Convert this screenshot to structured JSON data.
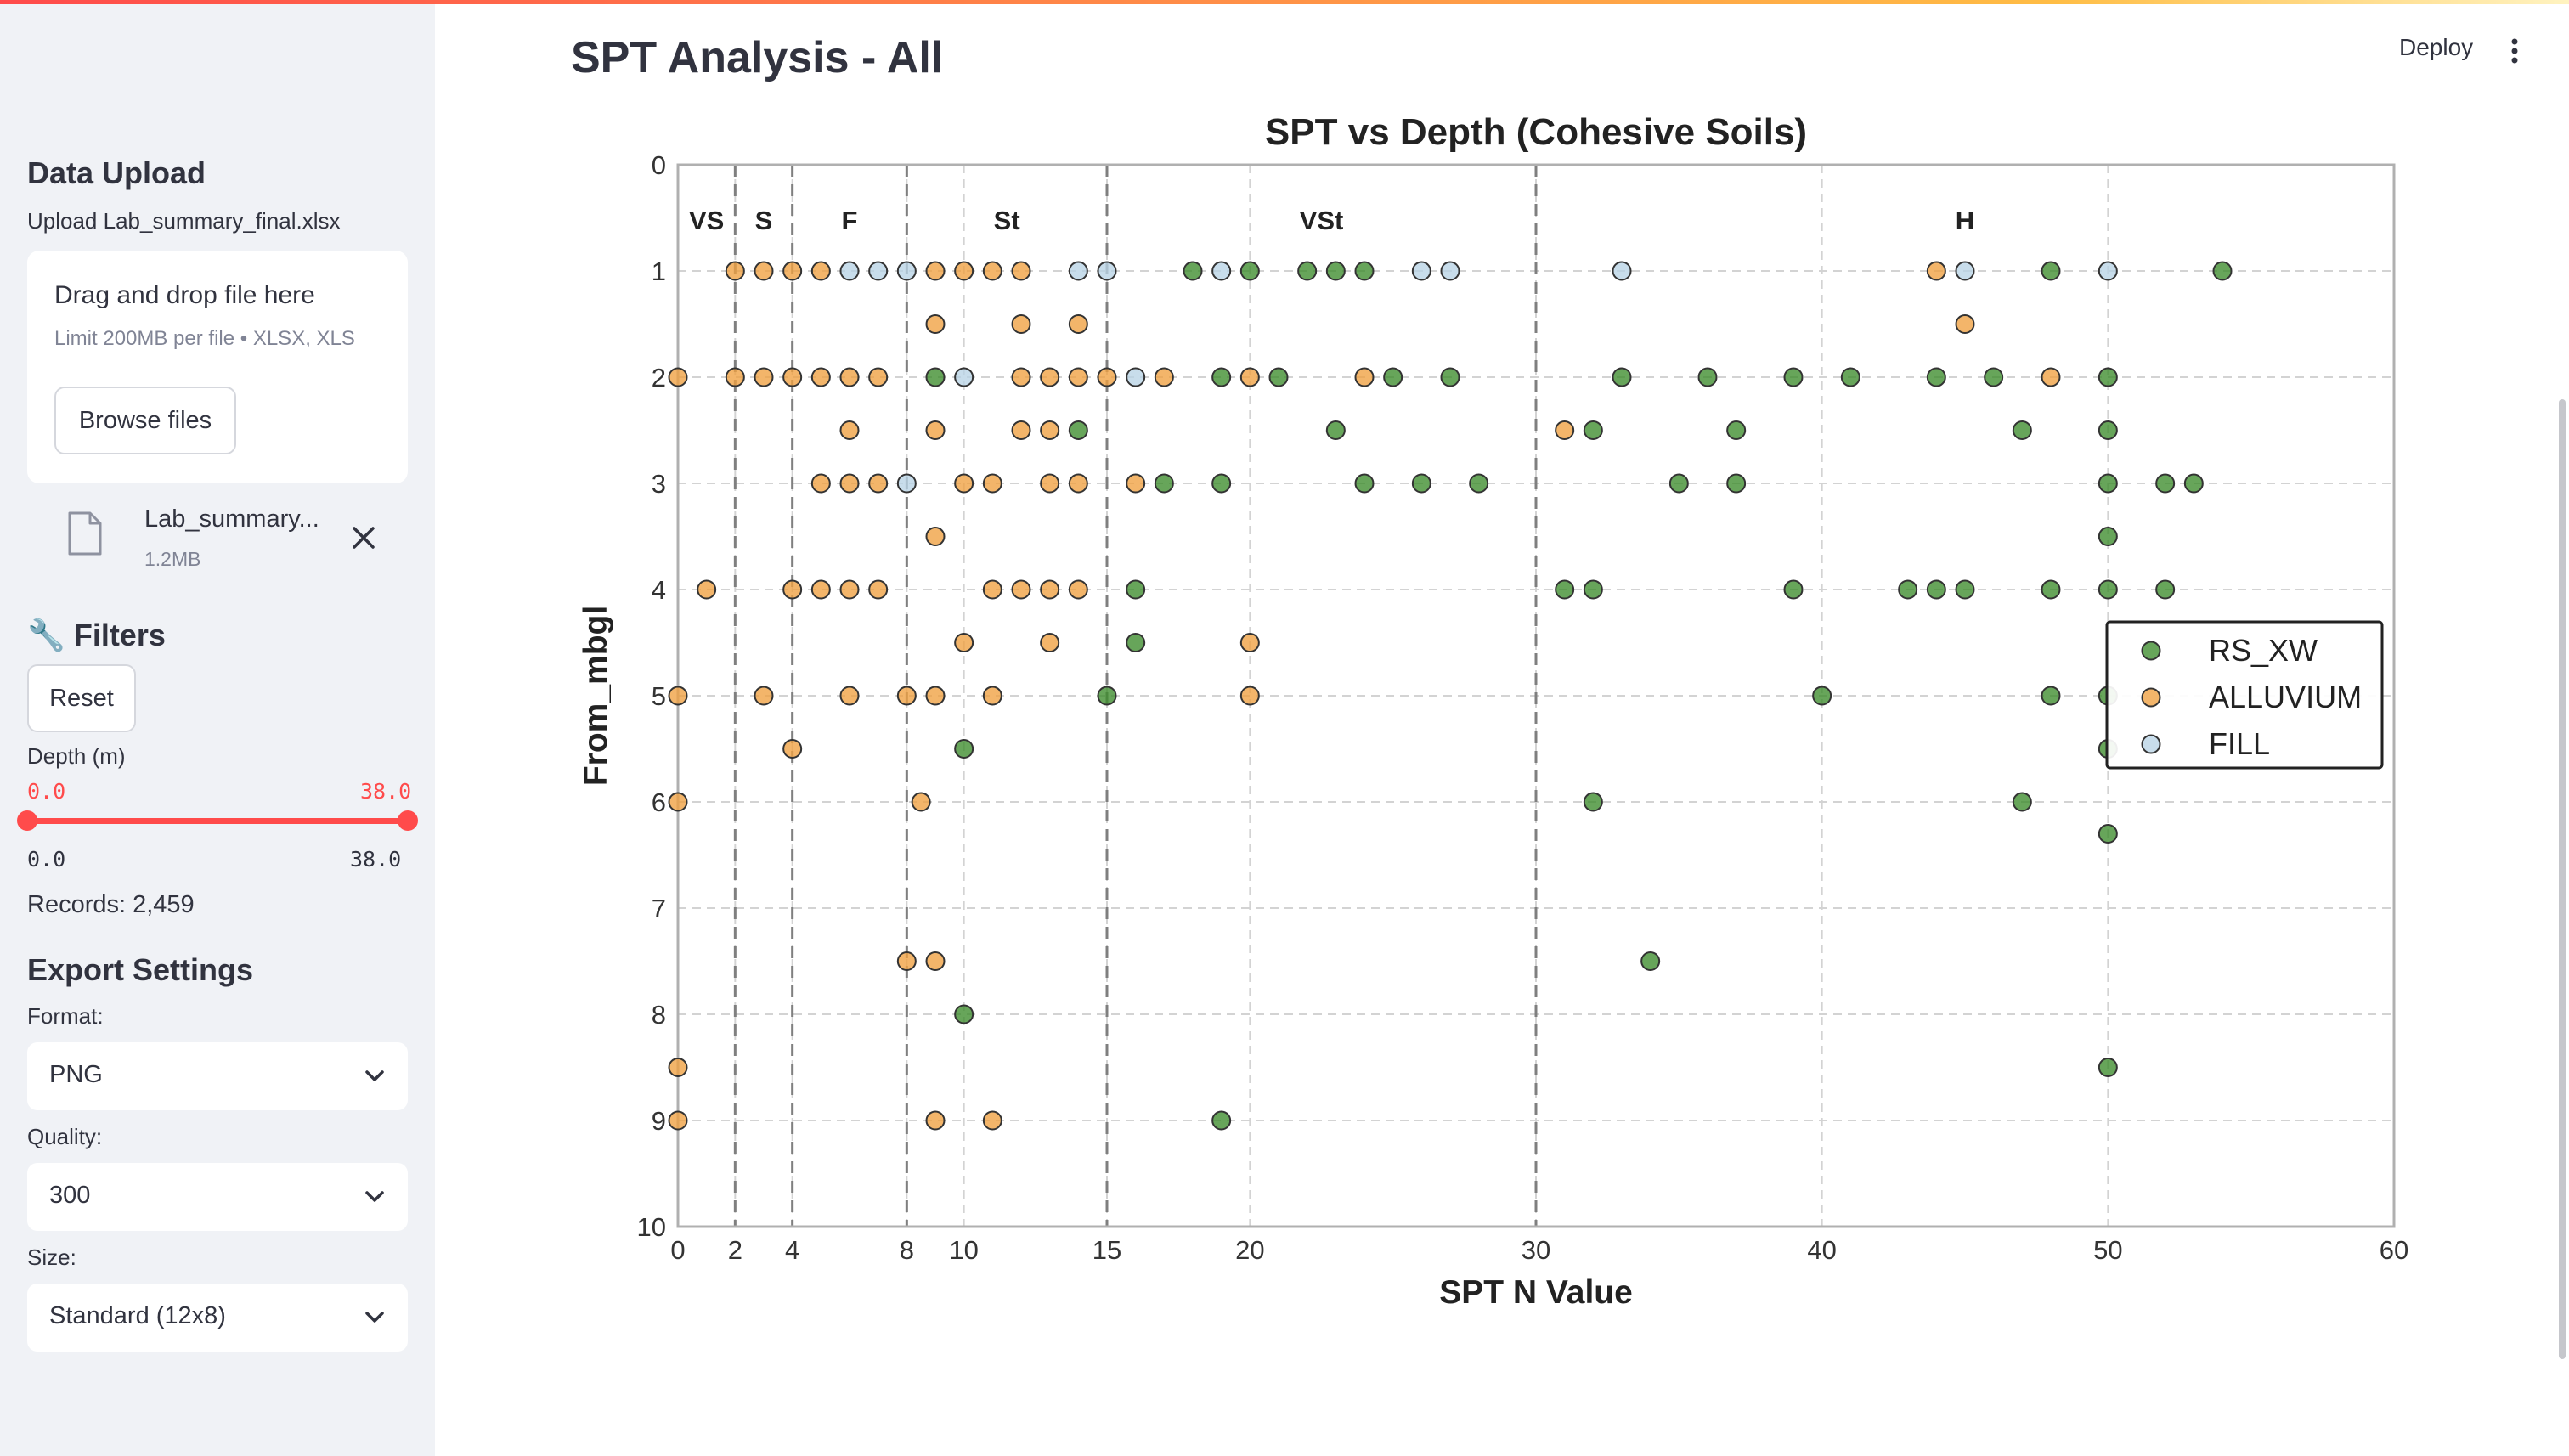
{
  "sidebar": {
    "upload_title": "Data Upload",
    "upload_label": "Upload Lab_summary_final.xlsx",
    "drop_text": "Drag and drop file here",
    "limit_text": "Limit 200MB per file • XLSX, XLS",
    "browse_label": "Browse files",
    "file_name": "Lab_summary...",
    "file_size": "1.2MB",
    "filters_title": "🔧 Filters",
    "reset_label": "Reset",
    "depth_label": "Depth (m)",
    "depth_min": "0.0",
    "depth_max": "38.0",
    "depth_range_min": "0.0",
    "depth_range_max": "38.0",
    "records": "Records: 2,459",
    "export_title": "Export Settings",
    "format_label": "Format:",
    "format_value": "PNG",
    "quality_label": "Quality:",
    "quality_value": "300",
    "size_label": "Size:",
    "size_value": "Standard (12x8)"
  },
  "header": {
    "page_title": "SPT Analysis - All",
    "deploy_label": "Deploy"
  },
  "colors": {
    "accent": "#ff4b4b",
    "rs_xw": "#3c8c2c",
    "alluvium": "#f0a040",
    "fill": "#b8d4e6"
  },
  "chart_data": {
    "type": "scatter",
    "title": "SPT vs Depth (Cohesive Soils)",
    "xlabel": "SPT N Value",
    "ylabel": "From_mbgl",
    "xlim": [
      0,
      60
    ],
    "ylim": [
      10,
      0
    ],
    "x_ticks": [
      0,
      2,
      4,
      8,
      10,
      15,
      20,
      30,
      40,
      50,
      60
    ],
    "y_ticks": [
      0,
      1,
      2,
      3,
      4,
      5,
      6,
      7,
      8,
      9,
      10
    ],
    "grid": true,
    "legend_position": "right",
    "consistency_boundaries": [
      2,
      4,
      8,
      15,
      30
    ],
    "consistency_zones": [
      {
        "label": "VS",
        "x": 1
      },
      {
        "label": "S",
        "x": 3
      },
      {
        "label": "F",
        "x": 6
      },
      {
        "label": "St",
        "x": 11.5
      },
      {
        "label": "VSt",
        "x": 22.5
      },
      {
        "label": "H",
        "x": 45
      }
    ],
    "series": [
      {
        "name": "RS_XW",
        "points": [
          [
            18,
            1
          ],
          [
            20,
            1
          ],
          [
            22,
            1
          ],
          [
            23,
            1
          ],
          [
            24,
            1
          ],
          [
            48,
            1
          ],
          [
            54,
            1
          ],
          [
            9,
            2
          ],
          [
            19,
            2
          ],
          [
            21,
            2
          ],
          [
            25,
            2
          ],
          [
            27,
            2
          ],
          [
            33,
            2
          ],
          [
            36,
            2
          ],
          [
            39,
            2
          ],
          [
            41,
            2
          ],
          [
            44,
            2
          ],
          [
            46,
            2
          ],
          [
            50,
            2
          ],
          [
            14,
            2.5
          ],
          [
            23,
            2.5
          ],
          [
            32,
            2.5
          ],
          [
            37,
            2.5
          ],
          [
            47,
            2.5
          ],
          [
            50,
            2.5
          ],
          [
            17,
            3
          ],
          [
            19,
            3
          ],
          [
            24,
            3
          ],
          [
            26,
            3
          ],
          [
            28,
            3
          ],
          [
            35,
            3
          ],
          [
            37,
            3
          ],
          [
            50,
            3
          ],
          [
            52,
            3
          ],
          [
            53,
            3
          ],
          [
            50,
            3.5
          ],
          [
            16,
            4
          ],
          [
            31,
            4
          ],
          [
            32,
            4
          ],
          [
            39,
            4
          ],
          [
            43,
            4
          ],
          [
            44,
            4
          ],
          [
            45,
            4
          ],
          [
            48,
            4
          ],
          [
            50,
            4
          ],
          [
            52,
            4
          ],
          [
            16,
            4.5
          ],
          [
            15,
            5
          ],
          [
            40,
            5
          ],
          [
            48,
            5
          ],
          [
            50,
            5
          ],
          [
            10,
            5.5
          ],
          [
            50,
            5.5
          ],
          [
            32,
            6
          ],
          [
            47,
            6
          ],
          [
            50,
            6.3
          ],
          [
            34,
            7.5
          ],
          [
            10,
            8
          ],
          [
            50,
            8.5
          ],
          [
            19,
            9
          ]
        ]
      },
      {
        "name": "ALLUVIUM",
        "points": [
          [
            2,
            1
          ],
          [
            3,
            1
          ],
          [
            4,
            1
          ],
          [
            5,
            1
          ],
          [
            9,
            1
          ],
          [
            10,
            1
          ],
          [
            11,
            1
          ],
          [
            12,
            1
          ],
          [
            44,
            1
          ],
          [
            9,
            1.5
          ],
          [
            12,
            1.5
          ],
          [
            14,
            1.5
          ],
          [
            45,
            1.5
          ],
          [
            0,
            2
          ],
          [
            2,
            2
          ],
          [
            3,
            2
          ],
          [
            4,
            2
          ],
          [
            5,
            2
          ],
          [
            6,
            2
          ],
          [
            7,
            2
          ],
          [
            12,
            2
          ],
          [
            13,
            2
          ],
          [
            14,
            2
          ],
          [
            15,
            2
          ],
          [
            17,
            2
          ],
          [
            20,
            2
          ],
          [
            24,
            2
          ],
          [
            48,
            2
          ],
          [
            6,
            2.5
          ],
          [
            9,
            2.5
          ],
          [
            12,
            2.5
          ],
          [
            13,
            2.5
          ],
          [
            31,
            2.5
          ],
          [
            5,
            3
          ],
          [
            6,
            3
          ],
          [
            7,
            3
          ],
          [
            10,
            3
          ],
          [
            11,
            3
          ],
          [
            13,
            3
          ],
          [
            14,
            3
          ],
          [
            16,
            3
          ],
          [
            9,
            3.5
          ],
          [
            1,
            4
          ],
          [
            4,
            4
          ],
          [
            5,
            4
          ],
          [
            6,
            4
          ],
          [
            7,
            4
          ],
          [
            11,
            4
          ],
          [
            12,
            4
          ],
          [
            13,
            4
          ],
          [
            14,
            4
          ],
          [
            10,
            4.5
          ],
          [
            13,
            4.5
          ],
          [
            20,
            4.5
          ],
          [
            0,
            5
          ],
          [
            3,
            5
          ],
          [
            6,
            5
          ],
          [
            8,
            5
          ],
          [
            9,
            5
          ],
          [
            11,
            5
          ],
          [
            20,
            5
          ],
          [
            4,
            5.5
          ],
          [
            0,
            6
          ],
          [
            8.5,
            6
          ],
          [
            8,
            7.5
          ],
          [
            9,
            7.5
          ],
          [
            0,
            8.5
          ],
          [
            0,
            9
          ],
          [
            9,
            9
          ],
          [
            11,
            9
          ]
        ]
      },
      {
        "name": "FILL",
        "points": [
          [
            6,
            1
          ],
          [
            7,
            1
          ],
          [
            8,
            1
          ],
          [
            14,
            1
          ],
          [
            15,
            1
          ],
          [
            19,
            1
          ],
          [
            26,
            1
          ],
          [
            27,
            1
          ],
          [
            33,
            1
          ],
          [
            45,
            1
          ],
          [
            50,
            1
          ],
          [
            10,
            2
          ],
          [
            16,
            2
          ],
          [
            8,
            3
          ]
        ]
      }
    ]
  }
}
